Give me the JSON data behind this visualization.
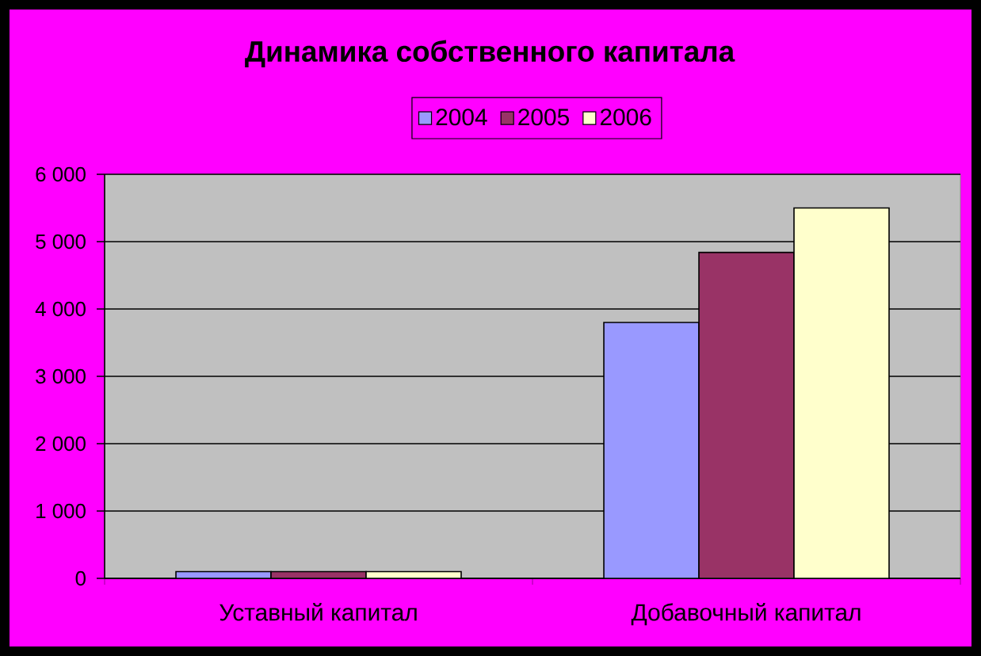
{
  "chart_data": {
    "type": "bar",
    "title": "Динамика собственного капитала",
    "categories": [
      "Уставный капитал",
      "Добавочный капитал"
    ],
    "series": [
      {
        "name": "2004",
        "color": "#9999ff",
        "values": [
          100,
          3800
        ]
      },
      {
        "name": "2005",
        "color": "#993366",
        "values": [
          100,
          4840
        ]
      },
      {
        "name": "2006",
        "color": "#ffffcc",
        "values": [
          100,
          5500
        ]
      }
    ],
    "ylim": [
      0,
      6000
    ],
    "yticks": [
      0,
      {
        "value": 1000,
        "label": "1 000"
      },
      {
        "value": 2000,
        "label": "2 000"
      },
      {
        "value": 3000,
        "label": "3 000"
      },
      {
        "value": 4000,
        "label": "4 000"
      },
      {
        "value": 5000,
        "label": "5 000"
      },
      {
        "value": 6000,
        "label": "6 000"
      }
    ],
    "grid": "y",
    "legend": "top"
  }
}
